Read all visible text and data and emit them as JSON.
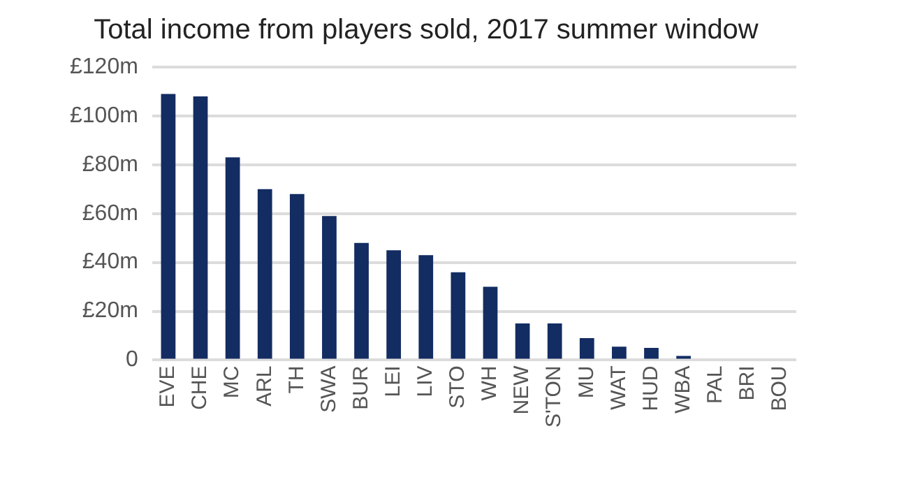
{
  "chart_data": {
    "type": "bar",
    "title": "Total income from players sold, 2017 summer window",
    "categories": [
      "EVE",
      "CHE",
      "MC",
      "ARL",
      "TH",
      "SWA",
      "BUR",
      "LEI",
      "LIV",
      "STO",
      "WH",
      "NEW",
      "S'TON",
      "MU",
      "WAT",
      "HUD",
      "WBA",
      "PAL",
      "BRI",
      "BOU"
    ],
    "values": [
      109,
      108,
      83,
      70,
      68,
      59,
      48,
      45,
      43,
      36,
      30,
      15,
      15,
      9,
      5.5,
      5,
      1.7,
      0,
      0,
      0
    ],
    "color": "#132c62",
    "ylim": [
      0,
      120
    ],
    "yticks": [
      0,
      {
        "value": 20,
        "label": "£20m"
      },
      {
        "value": 40,
        "label": "£40m"
      },
      {
        "value": 60,
        "label": "£60m"
      },
      {
        "value": 80,
        "label": "£80m"
      },
      {
        "value": 100,
        "label": "£100m"
      },
      {
        "value": 120,
        "label": "£120m"
      }
    ],
    "grid": "y"
  }
}
